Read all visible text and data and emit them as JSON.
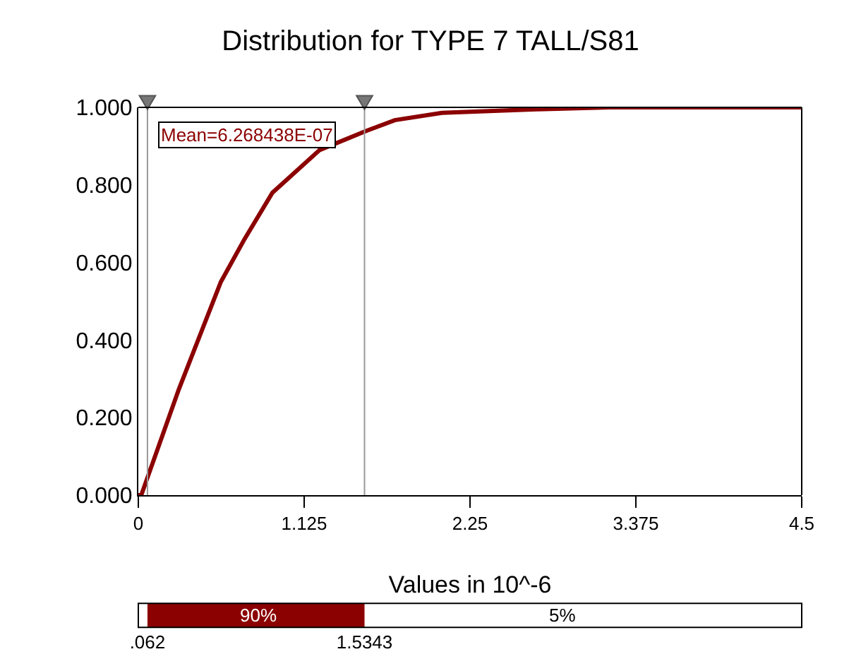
{
  "chart_data": [
    {
      "type": "line",
      "title": "Distribution for TYPE 7 TALL/S81",
      "xlabel": "Values in 10^-6",
      "x": [
        0,
        0.02,
        0.275,
        0.56,
        0.72,
        0.91,
        1.23,
        1.55,
        1.74,
        2.06,
        2.7,
        3.2,
        4.5
      ],
      "series": [
        {
          "color": "#8b0000",
          "values": [
            0,
            0.0,
            0.273,
            0.55,
            0.66,
            0.78,
            0.89,
            0.94,
            0.967,
            0.986,
            0.995,
            1.0,
            1.0
          ]
        }
      ],
      "xlim": [
        0,
        4.5
      ],
      "xticks": [
        0,
        1.125,
        2.25,
        3.375,
        4.5
      ],
      "ylim": [
        0,
        1
      ],
      "yticks": [
        {
          "value": 0,
          "label": "0.000"
        },
        {
          "value": 0.2,
          "label": "0.200"
        },
        {
          "value": 0.4,
          "label": "0.400"
        },
        {
          "value": 0.6,
          "label": "0.600"
        },
        {
          "value": 0.8,
          "label": "0.800"
        },
        {
          "value": 1,
          "label": "1.000"
        }
      ],
      "ref_lines": [
        {
          "axis": "x",
          "value": 0.062,
          "color": "#999999"
        },
        {
          "axis": "x",
          "value": 1.5343,
          "color": "#999999"
        }
      ],
      "annotations": [
        "Mean=6.268438E-07"
      ],
      "marker": "none",
      "line_style": "solid"
    },
    {
      "type": "bar",
      "orientation": "horizontal",
      "categories": [
        null
      ],
      "series": [
        {
          "color": "#8b0000",
          "values": [
            1.4723
          ],
          "base": [
            0.062
          ]
        }
      ],
      "annotations": [
        "90%",
        "5%"
      ],
      "xlim": [
        0,
        4.5
      ],
      "xticks": [
        {
          "value": 0.062,
          "label": ".062"
        },
        {
          "value": 1.5343,
          "label": "1.5343"
        }
      ],
      "tick_labels": "x"
    }
  ]
}
